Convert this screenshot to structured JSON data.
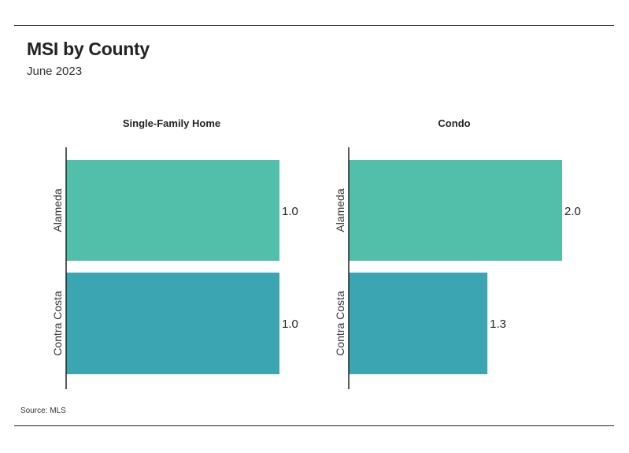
{
  "header": {
    "title": "MSI by County",
    "subtitle": "June 2023"
  },
  "footer": {
    "source": "Source: MLS"
  },
  "colors": {
    "alameda": "#52bfab",
    "contra_costa": "#3ba6b2",
    "axis": "#222222"
  },
  "chart_data": [
    {
      "type": "bar",
      "orientation": "horizontal",
      "title": "Single-Family Home",
      "categories": [
        "Alameda",
        "Contra Costa"
      ],
      "values": [
        1.0,
        1.0
      ],
      "value_labels": [
        "1.0",
        "1.0"
      ],
      "xlim": [
        0,
        1.0
      ]
    },
    {
      "type": "bar",
      "orientation": "horizontal",
      "title": "Condo",
      "categories": [
        "Alameda",
        "Contra Costa"
      ],
      "values": [
        2.0,
        1.3
      ],
      "value_labels": [
        "2.0",
        "1.3"
      ],
      "xlim": [
        0,
        2.0
      ]
    }
  ]
}
